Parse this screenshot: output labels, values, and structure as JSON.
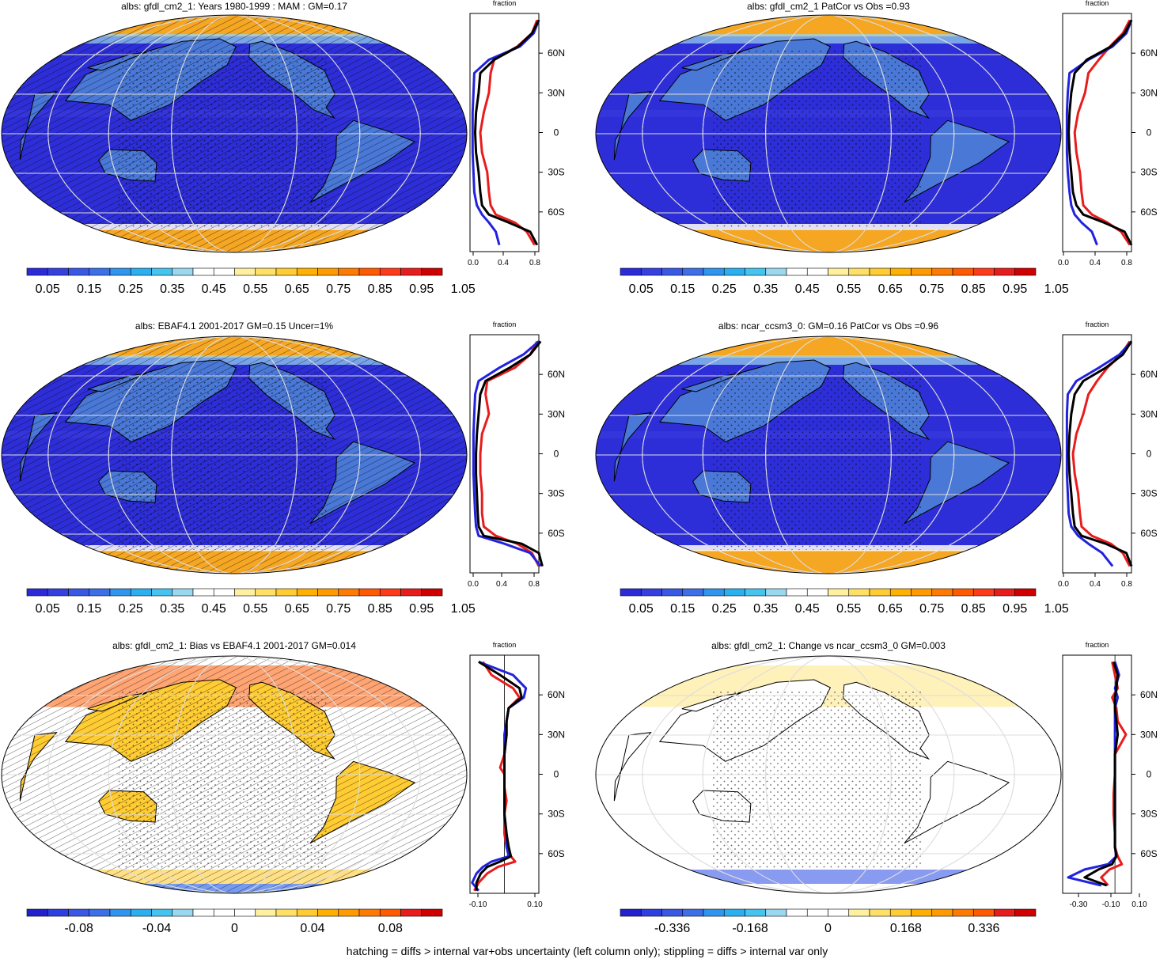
{
  "footer": "hatching = diffs > internal var+obs uncertainty (left column only); stippling = diffs > internal var only",
  "colors": {
    "abs_scale": [
      "#2b2bd9",
      "#3440e0",
      "#3a58e6",
      "#3c6fe8",
      "#2f95ee",
      "#2ab0f0",
      "#44c4ee",
      "#9ad8ef",
      "#ffffff",
      "#ffffff",
      "#fff0a0",
      "#ffe066",
      "#ffcc33",
      "#ffb000",
      "#ff9a00",
      "#ff7a00",
      "#ff5a00",
      "#ff3a1a",
      "#e81c1c",
      "#d00000"
    ],
    "diff_scale": [
      "#2222cc",
      "#2d3fe0",
      "#3a58e6",
      "#3c6fe8",
      "#2f95ee",
      "#2ab0f0",
      "#44c4ee",
      "#9ad8ef",
      "#ffffff",
      "#ffffff",
      "#ffffff",
      "#fff0a0",
      "#ffe066",
      "#ffcc33",
      "#ffb000",
      "#ff9a00",
      "#ff7a00",
      "#ff5a00",
      "#e81c1c",
      "#d00000"
    ],
    "ocean_abs": "#2e2ed8",
    "land_abs": "#4a78d6",
    "ice_abs": "#f5a623"
  },
  "panels": [
    {
      "title": "albs: gfdl_cm2_1: Years 1980-1999 : MAM : GM=0.17",
      "kind": "abs",
      "hatch": true,
      "colorbar_labels": [
        "0.05",
        "0.15",
        "0.25",
        "0.35",
        "0.45",
        "0.55",
        "0.65",
        "0.75",
        "0.85",
        "0.95",
        "1.05"
      ]
    },
    {
      "title": "albs: gfdl_cm2_1 PatCor vs Obs =0.93",
      "kind": "abs",
      "hatch": false,
      "colorbar_labels": [
        "0.05",
        "0.15",
        "0.25",
        "0.35",
        "0.45",
        "0.55",
        "0.65",
        "0.75",
        "0.85",
        "0.95",
        "1.05"
      ]
    },
    {
      "title": "albs: EBAF4.1 2001-2017 GM=0.15 Uncer=1%",
      "kind": "abs",
      "hatch": true,
      "colorbar_labels": [
        "0.05",
        "0.15",
        "0.25",
        "0.35",
        "0.45",
        "0.55",
        "0.65",
        "0.75",
        "0.85",
        "0.95",
        "1.05"
      ]
    },
    {
      "title": "albs: ncar_ccsm3_0: GM=0.16 PatCor vs Obs =0.96",
      "kind": "abs",
      "hatch": false,
      "colorbar_labels": [
        "0.05",
        "0.15",
        "0.25",
        "0.35",
        "0.45",
        "0.55",
        "0.65",
        "0.75",
        "0.85",
        "0.95",
        "1.05"
      ]
    },
    {
      "title": "albs: gfdl_cm2_1: Bias vs EBAF4.1 2001-2017 GM=0.014",
      "kind": "diff",
      "hatch": true,
      "colorbar_labels": [
        "-0.08",
        "-0.04",
        "0",
        "0.04",
        "0.08"
      ]
    },
    {
      "title": "albs: gfdl_cm2_1: Change vs ncar_ccsm3_0 GM=0.003",
      "kind": "diff",
      "hatch": false,
      "colorbar_labels": [
        "-0.336",
        "-0.168",
        "0",
        "0.168",
        "0.336"
      ]
    }
  ],
  "chart_data": [
    {
      "type": "line",
      "title": "fraction",
      "panel": "row1-left",
      "x_ticks": [
        "0.0",
        "0.4",
        "0.8"
      ],
      "xlim": [
        0.0,
        0.8
      ],
      "y_ticks": [
        "60N",
        "30N",
        "0",
        "30S",
        "60S"
      ],
      "ylim": [
        -90,
        90
      ],
      "series": [
        {
          "color": "#e81c1c",
          "lat": [
            85,
            75,
            65,
            55,
            45,
            30,
            15,
            0,
            -15,
            -30,
            -45,
            -55,
            -62,
            -68,
            -75,
            -85
          ],
          "values": [
            0.78,
            0.72,
            0.55,
            0.28,
            0.24,
            0.22,
            0.16,
            0.12,
            0.14,
            0.2,
            0.22,
            0.24,
            0.3,
            0.52,
            0.66,
            0.75
          ]
        },
        {
          "color": "#2222dd",
          "lat": [
            85,
            75,
            65,
            55,
            45,
            30,
            15,
            0,
            -15,
            -30,
            -45,
            -55,
            -62,
            -68,
            -75,
            -85
          ],
          "values": [
            0.8,
            0.74,
            0.58,
            0.22,
            0.05,
            0.04,
            0.03,
            0.03,
            0.03,
            0.04,
            0.05,
            0.08,
            0.14,
            0.22,
            0.3,
            0.34
          ]
        },
        {
          "color": "#000000",
          "lat": [
            85,
            75,
            65,
            55,
            45,
            30,
            15,
            0,
            -15,
            -30,
            -45,
            -55,
            -62,
            -68,
            -75,
            -85
          ],
          "values": [
            0.8,
            0.72,
            0.56,
            0.28,
            0.12,
            0.1,
            0.07,
            0.06,
            0.07,
            0.1,
            0.12,
            0.14,
            0.22,
            0.45,
            0.7,
            0.78
          ]
        }
      ]
    },
    {
      "type": "line",
      "title": "fraction",
      "panel": "row1-right",
      "x_ticks": [
        "0.0",
        "0.4",
        "0.8"
      ],
      "xlim": [
        0.0,
        0.8
      ],
      "y_ticks": [
        "60N",
        "30N",
        "0",
        "30S",
        "60S"
      ],
      "ylim": [
        -90,
        90
      ],
      "series": [
        {
          "color": "#e81c1c",
          "lat": [
            85,
            75,
            65,
            55,
            45,
            30,
            15,
            0,
            -15,
            -30,
            -45,
            -55,
            -62,
            -68,
            -75,
            -85
          ],
          "values": [
            0.78,
            0.7,
            0.55,
            0.42,
            0.3,
            0.26,
            0.18,
            0.14,
            0.16,
            0.2,
            0.22,
            0.24,
            0.34,
            0.52,
            0.68,
            0.78
          ]
        },
        {
          "color": "#2222dd",
          "lat": [
            85,
            75,
            65,
            55,
            45,
            30,
            15,
            0,
            -15,
            -30,
            -45,
            -55,
            -62,
            -68,
            -75,
            -85
          ],
          "values": [
            0.8,
            0.74,
            0.58,
            0.3,
            0.08,
            0.06,
            0.05,
            0.05,
            0.05,
            0.06,
            0.08,
            0.1,
            0.14,
            0.22,
            0.34,
            0.4
          ]
        },
        {
          "color": "#000000",
          "lat": [
            85,
            75,
            65,
            55,
            45,
            30,
            15,
            0,
            -15,
            -30,
            -45,
            -55,
            -62,
            -68,
            -75,
            -85
          ],
          "values": [
            0.8,
            0.72,
            0.56,
            0.28,
            0.14,
            0.1,
            0.08,
            0.07,
            0.08,
            0.1,
            0.12,
            0.16,
            0.24,
            0.48,
            0.72,
            0.8
          ]
        }
      ]
    },
    {
      "type": "line",
      "title": "fraction",
      "panel": "row2-left",
      "x_ticks": [
        "0.0",
        "0.4",
        "0.8"
      ],
      "xlim": [
        0.0,
        0.8
      ],
      "y_ticks": [
        "60N",
        "30N",
        "0",
        "30S",
        "60S"
      ],
      "ylim": [
        -90,
        90
      ],
      "series": [
        {
          "color": "#e81c1c",
          "lat": [
            85,
            75,
            65,
            55,
            45,
            30,
            15,
            0,
            -15,
            -30,
            -45,
            -55,
            -62,
            -68,
            -75,
            -85
          ],
          "values": [
            0.78,
            0.7,
            0.52,
            0.2,
            0.18,
            0.22,
            0.14,
            0.12,
            0.12,
            0.14,
            0.14,
            0.16,
            0.3,
            0.55,
            0.72,
            0.8
          ]
        },
        {
          "color": "#2222dd",
          "lat": [
            85,
            75,
            65,
            55,
            45,
            30,
            15,
            0,
            -15,
            -30,
            -45,
            -55,
            -62,
            -68,
            -75,
            -85
          ],
          "values": [
            0.8,
            0.62,
            0.34,
            0.1,
            0.06,
            0.05,
            0.04,
            0.04,
            0.04,
            0.05,
            0.06,
            0.07,
            0.1,
            0.4,
            0.7,
            0.82
          ]
        },
        {
          "color": "#000000",
          "lat": [
            85,
            75,
            65,
            55,
            45,
            30,
            15,
            0,
            -15,
            -30,
            -45,
            -55,
            -62,
            -68,
            -75,
            -85
          ],
          "values": [
            0.82,
            0.7,
            0.46,
            0.18,
            0.12,
            0.1,
            0.08,
            0.07,
            0.07,
            0.08,
            0.09,
            0.1,
            0.16,
            0.6,
            0.8,
            0.84
          ]
        }
      ]
    },
    {
      "type": "line",
      "title": "fraction",
      "panel": "row2-right",
      "x_ticks": [
        "0.0",
        "0.4",
        "0.8"
      ],
      "xlim": [
        0.0,
        0.8
      ],
      "y_ticks": [
        "60N",
        "30N",
        "0",
        "30S",
        "60S"
      ],
      "ylim": [
        -90,
        90
      ],
      "series": [
        {
          "color": "#e81c1c",
          "lat": [
            85,
            75,
            65,
            55,
            45,
            30,
            15,
            0,
            -15,
            -30,
            -45,
            -55,
            -62,
            -68,
            -75,
            -85
          ],
          "values": [
            0.78,
            0.68,
            0.52,
            0.4,
            0.3,
            0.24,
            0.16,
            0.12,
            0.14,
            0.18,
            0.2,
            0.22,
            0.34,
            0.56,
            0.7,
            0.78
          ]
        },
        {
          "color": "#2222dd",
          "lat": [
            85,
            75,
            65,
            55,
            45,
            30,
            15,
            0,
            -15,
            -30,
            -45,
            -55,
            -62,
            -68,
            -75,
            -85
          ],
          "values": [
            0.8,
            0.66,
            0.42,
            0.16,
            0.06,
            0.05,
            0.05,
            0.05,
            0.05,
            0.06,
            0.07,
            0.1,
            0.18,
            0.3,
            0.46,
            0.58
          ]
        },
        {
          "color": "#000000",
          "lat": [
            85,
            75,
            65,
            55,
            45,
            30,
            15,
            0,
            -15,
            -30,
            -45,
            -55,
            -62,
            -68,
            -75,
            -85
          ],
          "values": [
            0.8,
            0.7,
            0.5,
            0.24,
            0.14,
            0.1,
            0.08,
            0.07,
            0.08,
            0.1,
            0.12,
            0.14,
            0.22,
            0.5,
            0.74,
            0.8
          ]
        }
      ]
    },
    {
      "type": "line",
      "title": "fraction",
      "panel": "row3-left",
      "x_ticks": [
        "-0.10",
        "0.10"
      ],
      "xlim": [
        -0.16,
        0.16
      ],
      "y_ticks": [
        "60N",
        "30N",
        "0",
        "30S",
        "60S"
      ],
      "ylim": [
        -90,
        90
      ],
      "series": [
        {
          "color": "#e81c1c",
          "lat": [
            85,
            75,
            65,
            58,
            50,
            40,
            30,
            15,
            5,
            0,
            -10,
            -20,
            -30,
            -45,
            -55,
            -62,
            -66,
            -70,
            -75,
            -82,
            -88
          ],
          "values": [
            -0.1,
            -0.06,
            0.04,
            0.07,
            0.02,
            0.01,
            0.01,
            0.0,
            -0.02,
            0.0,
            0.0,
            0.01,
            0.0,
            0.0,
            0.01,
            0.03,
            0.05,
            -0.03,
            -0.08,
            -0.12,
            -0.14
          ]
        },
        {
          "color": "#2222dd",
          "lat": [
            85,
            75,
            65,
            58,
            50,
            40,
            30,
            15,
            5,
            0,
            -10,
            -20,
            -30,
            -45,
            -55,
            -62,
            -66,
            -70,
            -75,
            -82,
            -88
          ],
          "values": [
            -0.12,
            0.04,
            0.1,
            0.09,
            0.02,
            0.01,
            0.0,
            0.0,
            0.0,
            0.0,
            0.0,
            0.0,
            0.0,
            0.01,
            0.01,
            0.02,
            -0.06,
            -0.1,
            -0.13,
            -0.15,
            -0.12
          ]
        },
        {
          "color": "#000000",
          "lat": [
            85,
            75,
            65,
            58,
            50,
            40,
            30,
            15,
            5,
            0,
            -10,
            -20,
            -30,
            -45,
            -55,
            -62,
            -66,
            -70,
            -75,
            -82,
            -88
          ],
          "values": [
            -0.12,
            -0.02,
            0.07,
            0.08,
            0.02,
            0.01,
            0.01,
            0.0,
            0.0,
            0.0,
            0.0,
            0.0,
            0.0,
            0.01,
            0.02,
            0.03,
            -0.02,
            -0.08,
            -0.11,
            -0.13,
            -0.13
          ]
        }
      ]
    },
    {
      "type": "line",
      "title": "fraction",
      "panel": "row3-right",
      "x_ticks": [
        "-0.30",
        "-0.10",
        "0.10"
      ],
      "xlim": [
        -0.38,
        0.12
      ],
      "y_ticks": [
        "60N",
        "30N",
        "0",
        "30S",
        "60S"
      ],
      "ylim": [
        -90,
        90
      ],
      "series": [
        {
          "color": "#e81c1c",
          "lat": [
            85,
            75,
            65,
            58,
            50,
            40,
            30,
            15,
            0,
            -15,
            -30,
            -45,
            -55,
            -62,
            -68,
            -72,
            -78,
            -84
          ],
          "values": [
            -0.02,
            0.0,
            0.02,
            -0.02,
            0.01,
            0.02,
            0.08,
            0.0,
            0.0,
            -0.01,
            -0.01,
            0.0,
            0.0,
            0.02,
            0.05,
            -0.04,
            -0.1,
            -0.05
          ]
        },
        {
          "color": "#2222dd",
          "lat": [
            85,
            75,
            65,
            58,
            50,
            40,
            30,
            15,
            0,
            -15,
            -30,
            -45,
            -55,
            -62,
            -68,
            -72,
            -78,
            -84
          ],
          "values": [
            0.0,
            0.03,
            0.0,
            0.02,
            0.0,
            0.0,
            0.0,
            0.0,
            0.0,
            0.0,
            0.0,
            0.0,
            0.0,
            0.01,
            -0.05,
            -0.22,
            -0.34,
            -0.1
          ]
        },
        {
          "color": "#000000",
          "lat": [
            85,
            75,
            65,
            58,
            50,
            40,
            30,
            15,
            0,
            -15,
            -30,
            -45,
            -55,
            -62,
            -68,
            -72,
            -78,
            -84
          ],
          "values": [
            -0.01,
            0.02,
            0.01,
            0.0,
            0.0,
            0.01,
            0.02,
            0.0,
            0.0,
            0.0,
            0.0,
            0.0,
            0.0,
            0.01,
            -0.02,
            -0.12,
            -0.22,
            -0.06
          ]
        }
      ]
    }
  ]
}
